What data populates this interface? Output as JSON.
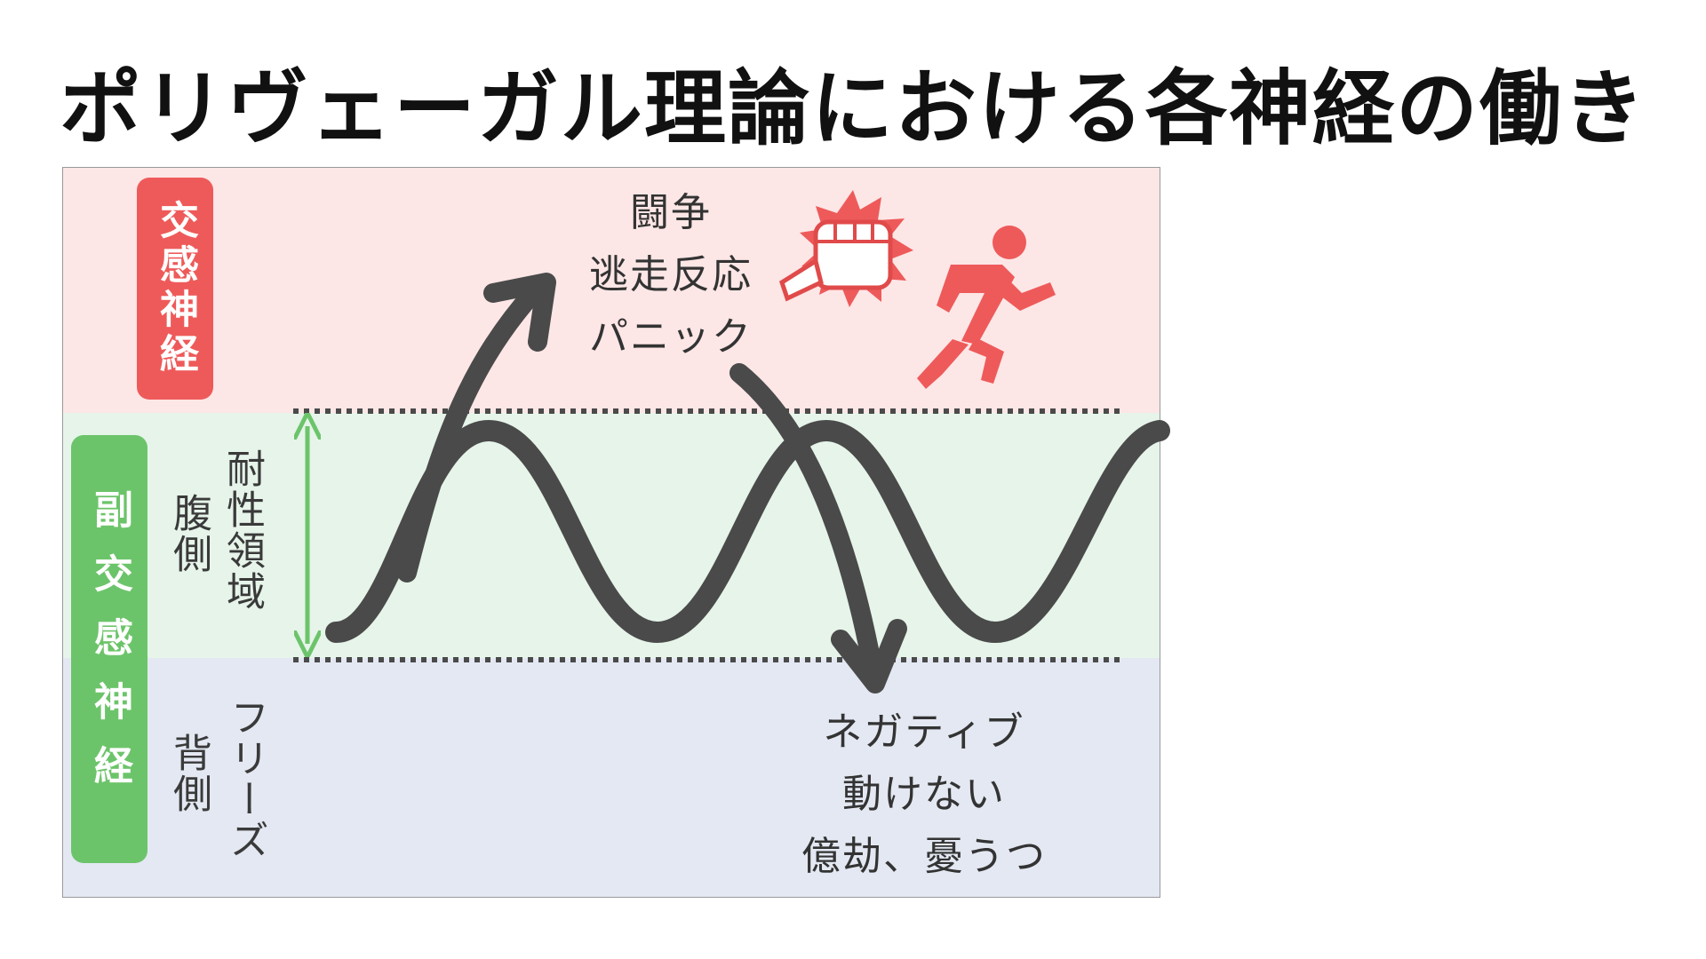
{
  "title": "ポリヴェーガル理論における各神経の働き",
  "zones": {
    "sympathetic_badge": "交感神経",
    "parasympathetic_badge": "副交感神経",
    "ventral_label": "腹側",
    "tolerance_label": "耐性領域",
    "dorsal_label": "背側",
    "freeze_label": "フリーズ"
  },
  "fight_text": [
    "闘争",
    "逃走反応",
    "パニック"
  ],
  "negative_text": [
    "ネガティブ",
    "動けない",
    "億劫、憂うつ"
  ],
  "colors": {
    "sympathetic": "#ee5a5a",
    "parasympathetic": "#6cc46a",
    "top_zone": "#fde6e6",
    "middle_zone": "#e6f4ea",
    "bottom_zone": "#e3e8f2",
    "curve": "#4a4a4a"
  },
  "icons": [
    "fist-punch-icon",
    "running-person-icon",
    "double-arrow-icon"
  ]
}
